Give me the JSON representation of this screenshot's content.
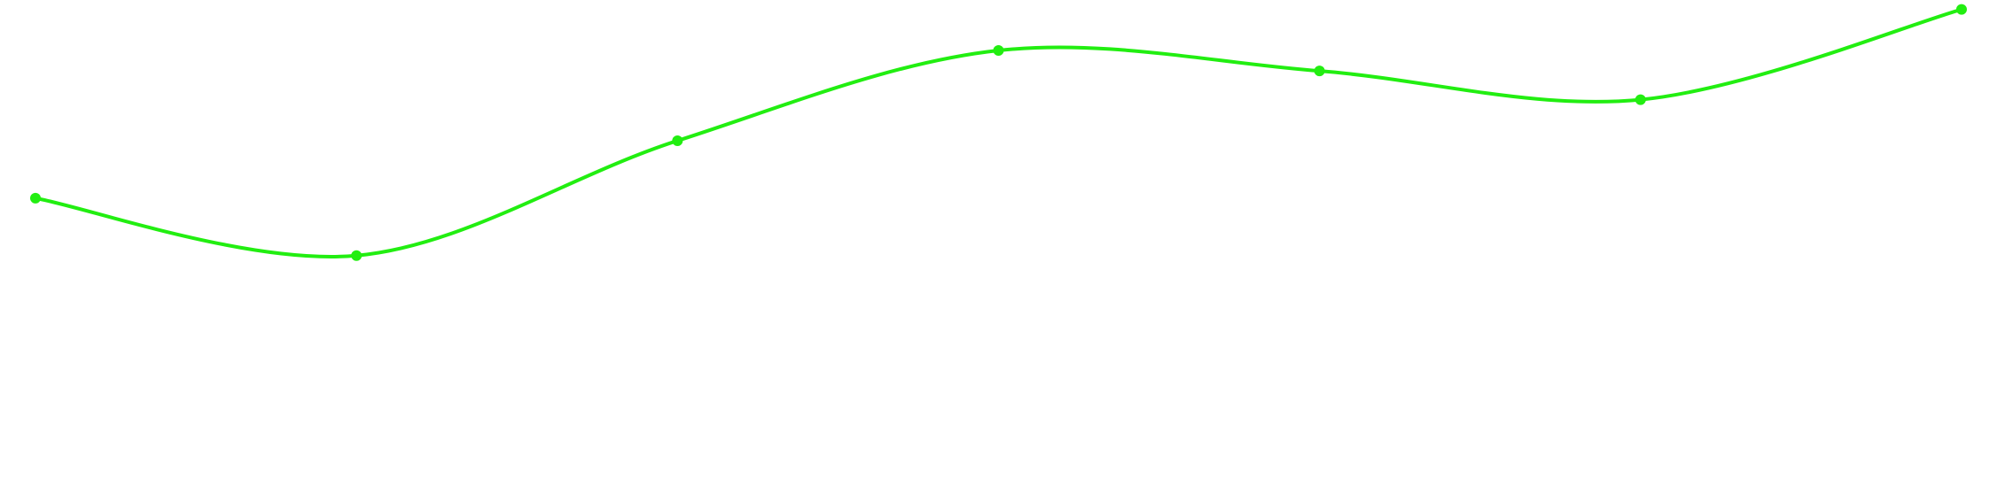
{
  "chart_data": {
    "type": "line",
    "x": [
      1,
      2,
      3,
      4,
      5,
      6,
      7
    ],
    "series": [
      {
        "color": "#22ee11",
        "values": [
          49,
          35,
          63,
          85,
          80,
          73,
          95
        ]
      }
    ],
    "ylim": [
      0,
      96
    ],
    "xlim": [
      1,
      7
    ],
    "smooth": true,
    "markers": true,
    "grid": false,
    "axes_visible": false,
    "legend": false
  }
}
